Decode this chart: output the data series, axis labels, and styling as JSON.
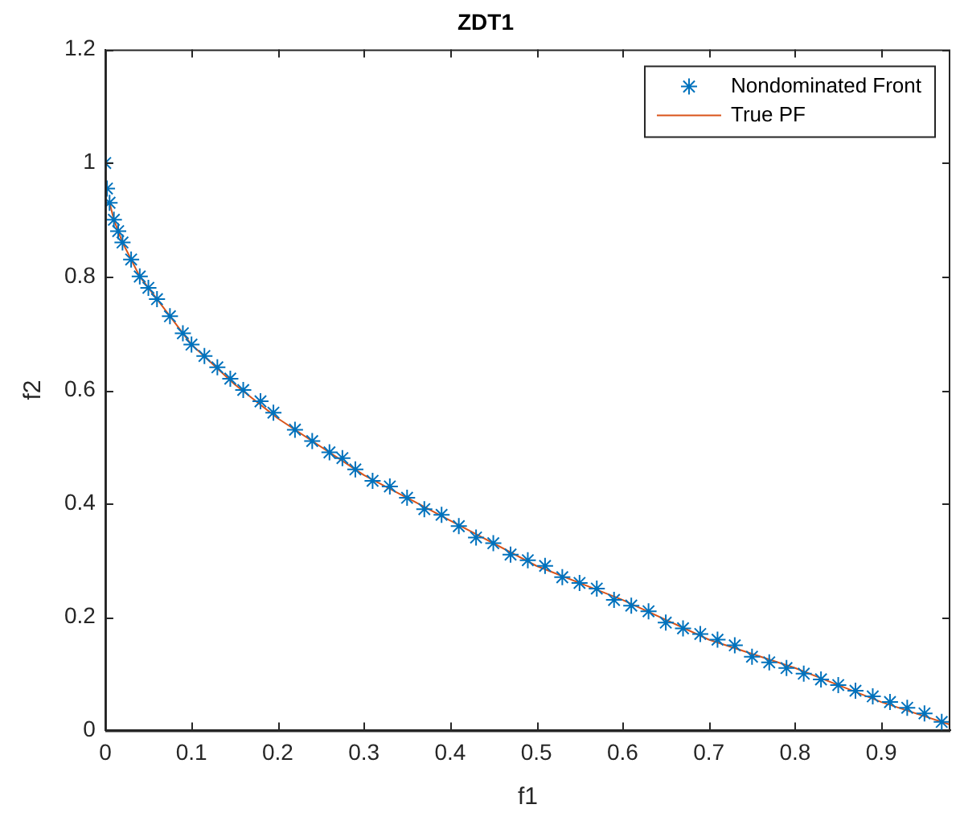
{
  "chart_data": {
    "type": "scatter",
    "title": "ZDT1",
    "xlabel": "f1",
    "ylabel": "f2",
    "xlim": [
      0,
      0.98
    ],
    "xticks": [
      0,
      0.1,
      0.2,
      0.3,
      0.4,
      0.5,
      0.6,
      0.7,
      0.8,
      0.9
    ],
    "ylim": [
      0,
      1.2
    ],
    "yticks": [
      0,
      0.2,
      0.4,
      0.6,
      0.8,
      1,
      1.2
    ],
    "grid": false,
    "legend": "top right",
    "marker": "cross",
    "series": [
      {
        "name": "Nondominated Front",
        "type": "scatter",
        "color": "#0072bd",
        "x": [
          0,
          0.002,
          0.005,
          0.01,
          0.015,
          0.02,
          0.03,
          0.04,
          0.05,
          0.06,
          0.075,
          0.09,
          0.1,
          0.115,
          0.13,
          0.145,
          0.16,
          0.18,
          0.195,
          0.22,
          0.24,
          0.26,
          0.275,
          0.29,
          0.31,
          0.33,
          0.35,
          0.37,
          0.39,
          0.41,
          0.43,
          0.45,
          0.47,
          0.49,
          0.51,
          0.53,
          0.55,
          0.57,
          0.59,
          0.61,
          0.63,
          0.65,
          0.67,
          0.69,
          0.71,
          0.73,
          0.75,
          0.77,
          0.79,
          0.81,
          0.83,
          0.85,
          0.87,
          0.89,
          0.91,
          0.93,
          0.95,
          0.97
        ],
        "values": [
          1,
          0.955,
          0.93,
          0.9,
          0.88,
          0.86,
          0.83,
          0.8,
          0.78,
          0.76,
          0.73,
          0.7,
          0.68,
          0.66,
          0.64,
          0.62,
          0.6,
          0.58,
          0.56,
          0.53,
          0.51,
          0.49,
          0.48,
          0.46,
          0.44,
          0.43,
          0.41,
          0.39,
          0.38,
          0.36,
          0.34,
          0.33,
          0.31,
          0.3,
          0.29,
          0.27,
          0.26,
          0.25,
          0.23,
          0.22,
          0.21,
          0.19,
          0.18,
          0.17,
          0.16,
          0.15,
          0.13,
          0.12,
          0.11,
          0.1,
          0.09,
          0.08,
          0.07,
          0.06,
          0.05,
          0.04,
          0.03,
          0.015
        ]
      },
      {
        "name": "True PF",
        "type": "line",
        "marker": "none",
        "color": "#d95319",
        "x": [
          0.005,
          0.01,
          0.02,
          0.04,
          0.07,
          0.1,
          0.15,
          0.2,
          0.3,
          0.4,
          0.5,
          0.6,
          0.7,
          0.8,
          0.9,
          0.98
        ],
        "values": [
          0.93,
          0.9,
          0.86,
          0.8,
          0.74,
          0.68,
          0.61,
          0.55,
          0.45,
          0.37,
          0.29,
          0.23,
          0.16,
          0.11,
          0.05,
          0.01
        ]
      }
    ]
  }
}
